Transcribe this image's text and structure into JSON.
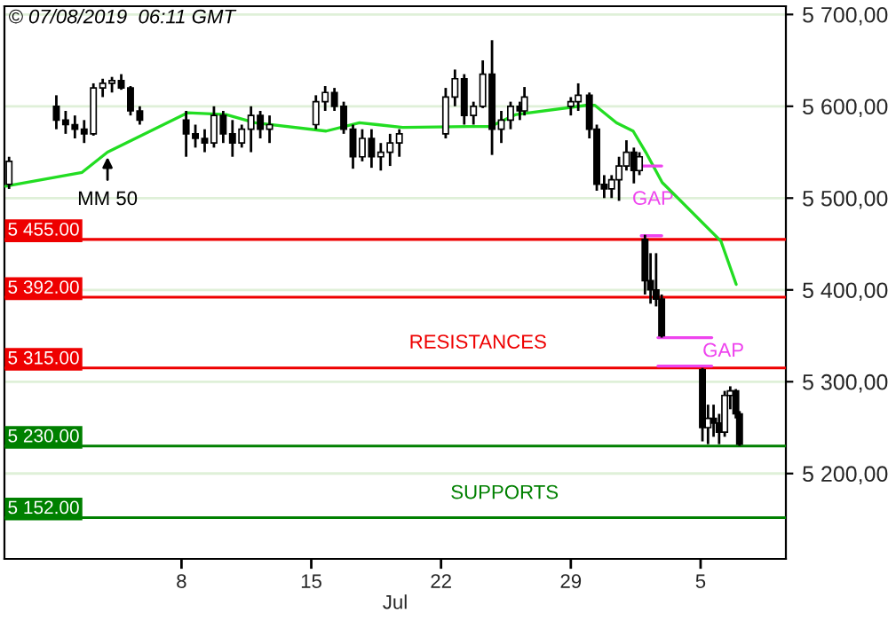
{
  "chart_data": {
    "type": "candlestick",
    "color": "#000000",
    "x": [
      "2019-06-28T16:48",
      "2019-07-01T06:00",
      "2019-07-01T18:00",
      "2019-07-02T06:00",
      "2019-07-02T18:00",
      "2019-07-03T06:00",
      "2019-07-03T18:00",
      "2019-07-04T06:00",
      "2019-07-04T18:00",
      "2019-07-05T06:00",
      "2019-07-05T18:00",
      "2019-07-08T06:00",
      "2019-07-08T18:00",
      "2019-07-09T06:00",
      "2019-07-09T18:00",
      "2019-07-10T06:00",
      "2019-07-10T18:00",
      "2019-07-11T06:00",
      "2019-07-11T18:00",
      "2019-07-12T06:00",
      "2019-07-12T18:00",
      "2019-07-15T06:00",
      "2019-07-15T18:00",
      "2019-07-16T06:00",
      "2019-07-16T18:00",
      "2019-07-17T06:00",
      "2019-07-17T18:00",
      "2019-07-18T06:00",
      "2019-07-18T18:00",
      "2019-07-19T06:00",
      "2019-07-19T18:00",
      "2019-07-22T06:00",
      "2019-07-22T18:00",
      "2019-07-23T06:00",
      "2019-07-23T18:00",
      "2019-07-24T06:00",
      "2019-07-24T18:00",
      "2019-07-25T06:00",
      "2019-07-25T18:00",
      "2019-07-26T06:00",
      "2019-07-26T12:00",
      "2019-07-29T00:00",
      "2019-07-29T09:36",
      "2019-07-30T00:00",
      "2019-07-30T09:36",
      "2019-07-30T19:12",
      "2019-07-31T04:48",
      "2019-07-31T14:24",
      "2019-08-01T00:00",
      "2019-08-01T09:36",
      "2019-08-01T16:48",
      "2019-08-02T00:00",
      "2019-08-02T07:12",
      "2019-08-02T14:24",
      "2019-08-02T21:36",
      "2019-08-05T02:24",
      "2019-08-05T09:36",
      "2019-08-05T16:48",
      "2019-08-06T00:00",
      "2019-08-06T07:12",
      "2019-08-06T14:24",
      "2019-08-06T21:36",
      "2019-08-07T02:24"
    ],
    "ohlc": [
      [
        5515,
        5545,
        5510,
        5540
      ],
      [
        5600,
        5612,
        5575,
        5585
      ],
      [
        5585,
        5595,
        5570,
        5580
      ],
      [
        5580,
        5590,
        5565,
        5575
      ],
      [
        5575,
        5585,
        5560,
        5570
      ],
      [
        5570,
        5625,
        5568,
        5620
      ],
      [
        5620,
        5630,
        5610,
        5625
      ],
      [
        5625,
        5632,
        5615,
        5628
      ],
      [
        5628,
        5635,
        5618,
        5620
      ],
      [
        5620,
        5622,
        5590,
        5595
      ],
      [
        5595,
        5600,
        5580,
        5585
      ],
      [
        5585,
        5595,
        5545,
        5570
      ],
      [
        5570,
        5580,
        5555,
        5565
      ],
      [
        5565,
        5575,
        5550,
        5560
      ],
      [
        5560,
        5600,
        5555,
        5590
      ],
      [
        5590,
        5595,
        5560,
        5570
      ],
      [
        5570,
        5585,
        5545,
        5560
      ],
      [
        5560,
        5580,
        5555,
        5575
      ],
      [
        5575,
        5600,
        5550,
        5590
      ],
      [
        5590,
        5595,
        5565,
        5575
      ],
      [
        5575,
        5590,
        5560,
        5580
      ],
      [
        5580,
        5612,
        5575,
        5605
      ],
      [
        5605,
        5622,
        5595,
        5615
      ],
      [
        5615,
        5620,
        5595,
        5600
      ],
      [
        5600,
        5605,
        5570,
        5575
      ],
      [
        5575,
        5580,
        5532,
        5545
      ],
      [
        5545,
        5575,
        5540,
        5565
      ],
      [
        5565,
        5575,
        5533,
        5545
      ],
      [
        5545,
        5560,
        5530,
        5550
      ],
      [
        5550,
        5570,
        5535,
        5560
      ],
      [
        5560,
        5575,
        5545,
        5570
      ],
      [
        5570,
        5620,
        5565,
        5610
      ],
      [
        5610,
        5640,
        5600,
        5630
      ],
      [
        5630,
        5635,
        5580,
        5590
      ],
      [
        5590,
        5605,
        5580,
        5600
      ],
      [
        5600,
        5650,
        5598,
        5635
      ],
      [
        5635,
        5672,
        5547,
        5575
      ],
      [
        5575,
        5595,
        5560,
        5585
      ],
      [
        5585,
        5605,
        5575,
        5600
      ],
      [
        5600,
        5605,
        5585,
        5595
      ],
      [
        5595,
        5621,
        5590,
        5610
      ],
      [
        5600,
        5610,
        5590,
        5605
      ],
      [
        5605,
        5625,
        5595,
        5612
      ],
      [
        5612,
        5615,
        5565,
        5575
      ],
      [
        5575,
        5580,
        5508,
        5515
      ],
      [
        5515,
        5525,
        5500,
        5510
      ],
      [
        5510,
        5525,
        5500,
        5520
      ],
      [
        5520,
        5545,
        5497,
        5535
      ],
      [
        5535,
        5563,
        5530,
        5550
      ],
      [
        5550,
        5555,
        5516,
        5530
      ],
      [
        5530,
        5550,
        5525,
        5545
      ],
      [
        5455,
        5460,
        5395,
        5410
      ],
      [
        5410,
        5440,
        5385,
        5400
      ],
      [
        5400,
        5440,
        5382,
        5390
      ],
      [
        5390,
        5395,
        5348,
        5350
      ],
      [
        5313,
        5315,
        5235,
        5250
      ],
      [
        5250,
        5275,
        5232,
        5260
      ],
      [
        5260,
        5275,
        5240,
        5255
      ],
      [
        5255,
        5265,
        5232,
        5245
      ],
      [
        5245,
        5290,
        5240,
        5285
      ],
      [
        5285,
        5295,
        5270,
        5290
      ],
      [
        5290,
        5292,
        5260,
        5265
      ],
      [
        5265,
        5268,
        5230,
        5232
      ]
    ],
    "series": [
      {
        "type": "line",
        "color": "#22dd22",
        "x": [
          "2019-06-28T12:30",
          "2019-07-02T15:20",
          "2019-07-04T00:15",
          "2019-07-08T08:10",
          "2019-07-10T09:36",
          "2019-07-11T23:15",
          "2019-07-15T19:12",
          "2019-07-17T14:24",
          "2019-07-18T13:25",
          "2019-07-19T22:20",
          "2019-07-23T12:00",
          "2019-07-24T16:05",
          "2019-07-26T01:00",
          "2019-07-29T19:40",
          "2019-07-30T07:12",
          "2019-07-31T11:15",
          "2019-08-01T08:40",
          "2019-08-02T01:00",
          "2019-08-02T22:20",
          "2019-08-06T02:24",
          "2019-08-06T22:05"
        ],
        "values": [
          5513,
          5528,
          5550,
          5593,
          5591,
          5582,
          5573,
          5582,
          5580,
          5577,
          5578,
          5578,
          5591,
          5601,
          5601,
          5582,
          5573,
          5550,
          5517,
          5453,
          5406
        ]
      },
      {
        "type": "line",
        "color": "#ee44ee",
        "x": [
          "2019-08-01T19:12",
          "2019-08-02T21:36"
        ],
        "values": [
          5535,
          5535
        ]
      },
      {
        "type": "line",
        "color": "#ee44ee",
        "x": [
          "2019-08-01T19:12",
          "2019-08-02T21:36"
        ],
        "values": [
          5459,
          5459
        ]
      },
      {
        "type": "line",
        "color": "#ee44ee",
        "x": [
          "2019-08-02T16:48",
          "2019-08-05T14:24"
        ],
        "values": [
          5348,
          5348
        ]
      },
      {
        "type": "line",
        "color": "#ee44ee",
        "x": [
          "2019-08-02T16:48",
          "2019-08-05T14:24"
        ],
        "values": [
          5317,
          5317
        ]
      }
    ],
    "ref_lines": [
      {
        "axis": "y",
        "value": 5455,
        "label": "5 455.00",
        "color": "#ee0000"
      },
      {
        "axis": "y",
        "value": 5392,
        "label": "5 392.00",
        "color": "#ee0000"
      },
      {
        "axis": "y",
        "value": 5315,
        "label": "5 315.00",
        "color": "#ee0000"
      },
      {
        "axis": "y",
        "value": 5230,
        "label": "5 230.00",
        "color": "#008000"
      },
      {
        "axis": "y",
        "value": 5152,
        "label": "5 152.00",
        "color": "#008000"
      }
    ],
    "annotations": [
      "© 07/08/2019  06:11 GMT",
      {
        "text": "MM 50",
        "x": "2019-07-04T00:15",
        "y": 5550
      },
      "GAP",
      "GAP",
      "RESISTANCES",
      "SUPPORTS"
    ],
    "xlabel": "Jul",
    "xlim": [
      "2019-06-28T10:48",
      "2019-08-09T14:24"
    ],
    "xticks": [
      {
        "value": "2019-07-08",
        "label": "8"
      },
      {
        "value": "2019-07-15",
        "label": "15"
      },
      {
        "value": "2019-07-22",
        "label": "22"
      },
      {
        "value": "2019-07-29",
        "label": "29"
      },
      {
        "value": "2019-08-05",
        "label": "5"
      }
    ],
    "ylim": [
      5107,
      5709
    ],
    "yticks": [
      {
        "value": 5200,
        "label": "5 200,00"
      },
      {
        "value": 5300,
        "label": "5 300,00"
      },
      {
        "value": 5400,
        "label": "5 400,00"
      },
      {
        "value": 5500,
        "label": "5 500,00"
      },
      {
        "value": 5600,
        "label": "5 600,00"
      },
      {
        "value": 5700,
        "label": "5 700,00"
      }
    ],
    "grid": "y",
    "legend": false
  }
}
